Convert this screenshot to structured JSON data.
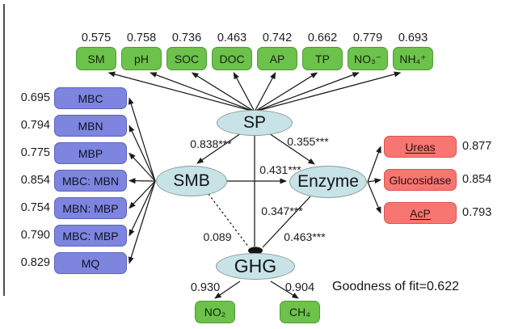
{
  "figure": {
    "type": "structural_equation_model",
    "goodness_of_fit": "Goodness of fit=0.622",
    "latent_variables": [
      "SP",
      "SMB",
      "Enzyme",
      "GHG"
    ],
    "indicators": {
      "top": [
        {
          "label": "SM",
          "loading": "0.575"
        },
        {
          "label": "pH",
          "loading": "0.758"
        },
        {
          "label": "SOC",
          "loading": "0.736"
        },
        {
          "label": "DOC",
          "loading": "0.463"
        },
        {
          "label": "AP",
          "loading": "0.742"
        },
        {
          "label": "TP",
          "loading": "0.662"
        },
        {
          "label": "NO₃⁻",
          "loading": "0.779"
        },
        {
          "label": "NH₄⁺",
          "loading": "0.693"
        }
      ],
      "left": [
        {
          "label": "MBC",
          "loading": "0.695"
        },
        {
          "label": "MBN",
          "loading": "0.794"
        },
        {
          "label": "MBP",
          "loading": "0.775"
        },
        {
          "label": "MBC: MBN",
          "loading": "0.854"
        },
        {
          "label": "MBN: MBP",
          "loading": "0.754"
        },
        {
          "label": "MBC: MBP",
          "loading": "0.790"
        },
        {
          "label": "MQ",
          "loading": "0.829"
        }
      ],
      "right": [
        {
          "label": "Ureas",
          "loading": "0.877",
          "underlined": true
        },
        {
          "label": "Glucosidase",
          "loading": "0.854",
          "underlined": false
        },
        {
          "label": "AcP",
          "loading": "0.793",
          "underlined": true
        }
      ],
      "bottom": [
        {
          "label": "NO₂",
          "loading": "0.930"
        },
        {
          "label": "CH₄",
          "loading": "0.904"
        }
      ]
    },
    "paths": [
      {
        "from": "SP",
        "to": "SMB",
        "coefficient": "0.838***",
        "style": "solid"
      },
      {
        "from": "SP",
        "to": "Enzyme",
        "coefficient": "0.355***",
        "style": "solid"
      },
      {
        "from": "SMB",
        "to": "Enzyme",
        "coefficient": "0.431***",
        "style": "solid"
      },
      {
        "from": "SP",
        "to": "GHG",
        "coefficient": "0.347***",
        "style": "solid"
      },
      {
        "from": "SMB",
        "to": "GHG",
        "coefficient": "0.089",
        "style": "dashed"
      },
      {
        "from": "Enzyme",
        "to": "GHG",
        "coefficient": "0.463***",
        "style": "solid"
      }
    ],
    "colors": {
      "indicator_green": "#6cc24a",
      "indicator_blue": "#7d85de",
      "indicator_red": "#f87671",
      "latent_fill": "#c8e3e7",
      "arrow": "#1a1a1a"
    }
  }
}
